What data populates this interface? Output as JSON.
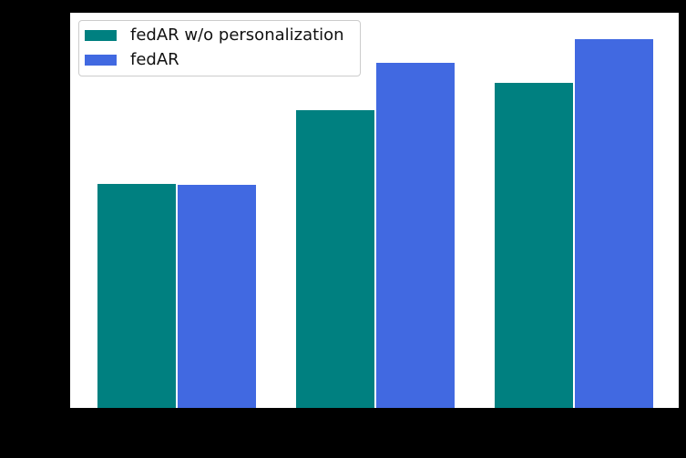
{
  "figure": {
    "background_color": "#000000",
    "plot_background_color": "#ffffff"
  },
  "legend": {
    "items": [
      {
        "label": "fedAR w/o personalization",
        "color": "#008080"
      },
      {
        "label": "fedAR",
        "color": "#4169E1"
      }
    ]
  },
  "chart_data": {
    "type": "bar",
    "categories": [
      "",
      "",
      ""
    ],
    "series": [
      {
        "name": "fedAR w/o personalization",
        "color": "#008080",
        "values": [
          0.566,
          0.753,
          0.822
        ]
      },
      {
        "name": "fedAR",
        "color": "#4169E1",
        "values": [
          0.564,
          0.873,
          0.934
        ]
      }
    ],
    "title": "",
    "xlabel": "",
    "ylabel": "",
    "ylim": [
      0,
      1
    ],
    "grid": false,
    "legend_position": "upper left",
    "note": "Axis tick labels, axis titles and category labels are not visible in the screenshot (rendered black-on-black); bar values are estimated fractions of full plot height."
  }
}
